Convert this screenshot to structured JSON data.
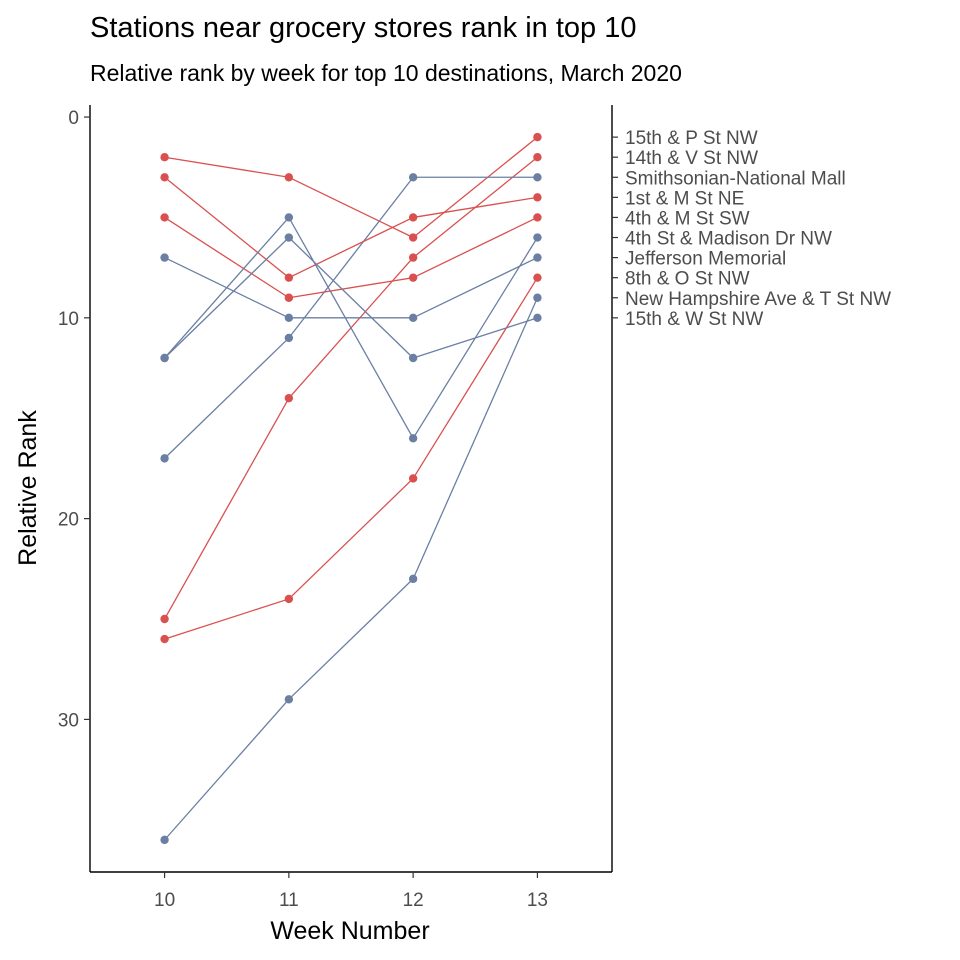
{
  "chart_data": {
    "type": "line",
    "title": "Stations near grocery stores rank in top 10",
    "subtitle": "Relative rank by week for top 10 destinations, March 2020",
    "xlabel": "Week Number",
    "ylabel": "Relative Rank",
    "x": [
      10,
      11,
      12,
      13
    ],
    "x_ticks": [
      "10",
      "11",
      "12",
      "13"
    ],
    "y_ticks": [
      "0",
      "10",
      "20",
      "30"
    ],
    "y_tick_values": [
      0,
      10,
      20,
      30
    ],
    "xlim": [
      9.4,
      13.6
    ],
    "ylim": [
      -0.6,
      37.6
    ],
    "y_reversed": true,
    "grid": false,
    "colors": {
      "near_grocery": "#d9504f",
      "other": "#6b7fa3"
    },
    "series": [
      {
        "name": "15th & P St NW",
        "group": "near_grocery",
        "values": [
          2,
          3,
          6,
          1
        ]
      },
      {
        "name": "14th & V St NW",
        "group": "near_grocery",
        "values": [
          25,
          14,
          7,
          2
        ]
      },
      {
        "name": "Smithsonian-National Mall",
        "group": "other",
        "values": [
          17,
          11,
          3,
          3
        ]
      },
      {
        "name": "1st & M St NE",
        "group": "near_grocery",
        "values": [
          3,
          8,
          5,
          4
        ]
      },
      {
        "name": "4th & M St SW",
        "group": "near_grocery",
        "values": [
          5,
          9,
          8,
          5
        ]
      },
      {
        "name": "4th St & Madison Dr NW",
        "group": "other",
        "values": [
          12,
          5,
          16,
          6
        ]
      },
      {
        "name": "Jefferson Memorial",
        "group": "other",
        "values": [
          7,
          10,
          10,
          7
        ]
      },
      {
        "name": "8th & O St NW",
        "group": "near_grocery",
        "values": [
          26,
          24,
          18,
          8
        ]
      },
      {
        "name": "New Hampshire Ave & T St NW",
        "group": "other",
        "values": [
          36,
          29,
          23,
          9
        ]
      },
      {
        "name": "15th & W St NW",
        "group": "other",
        "values": [
          12,
          6,
          12,
          10
        ]
      }
    ]
  }
}
